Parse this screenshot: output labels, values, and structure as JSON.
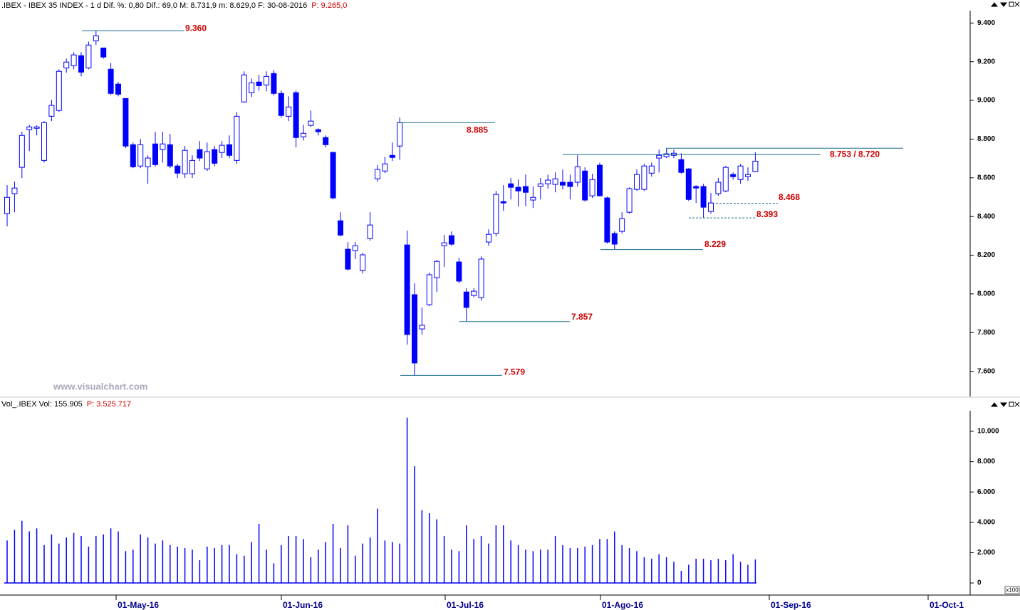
{
  "chart_data": [
    {
      "type": "candlestick",
      "title": ".IBEX - IBEX 35 INDEX - 1 d  Dif. %: 0,80  Dif.: 69,0  M: 8.731,9  m: 8.629,0  F: 30-08-2016",
      "subtitle": "P: 9.265,0",
      "watermark": "www.visualchart.com",
      "x_labels": [
        "01-May-16",
        "01-Jun-16",
        "01-Jul-16",
        "01-Ago-16",
        "01-Sep-16",
        "01-Oct-1"
      ],
      "up_color": "#ffffff",
      "down_color": "#0000ff",
      "line_color": "#0000ff",
      "annotation_color": "#1a6e8e",
      "annotation_label_color": "#cc0000",
      "ylim": [
        7470,
        9460
      ],
      "yticks": [
        {
          "value": 7600,
          "label": "7.600"
        },
        {
          "value": 7800,
          "label": "7.800"
        },
        {
          "value": 8000,
          "label": "8.000"
        },
        {
          "value": 8200,
          "label": "8.200"
        },
        {
          "value": 8400,
          "label": "8.400"
        },
        {
          "value": 8600,
          "label": "8.600"
        },
        {
          "value": 8800,
          "label": "8.800"
        },
        {
          "value": 9000,
          "label": "9.000"
        },
        {
          "value": 9200,
          "label": "9.200"
        },
        {
          "value": 9400,
          "label": "9.400"
        }
      ],
      "open": [
        8415,
        8518,
        8654,
        8849,
        8856,
        8690,
        8918,
        8948,
        9168,
        9179,
        9231,
        9168,
        9308,
        9271,
        9161,
        9084,
        9010,
        8771,
        8661,
        8657,
        8775,
        8746,
        8771,
        8661,
        8621,
        8621,
        8746,
        8646,
        8746,
        8731,
        8771,
        8690,
        8992,
        9040,
        9095,
        9080,
        9139,
        9036,
        8918,
        9040,
        8812,
        8871,
        8849,
        8808,
        8731,
        8378,
        8231,
        8224,
        8121,
        8286,
        8595,
        8635,
        8716,
        8764,
        8253,
        7996,
        7819,
        7944,
        8084,
        8249,
        8301,
        8165,
        8010,
        7992,
        7981,
        8268,
        8312,
        8477,
        8569,
        8551,
        8555,
        8485,
        8555,
        8569,
        8566,
        8577,
        8577,
        8577,
        8635,
        8507,
        8665,
        8496,
        8312,
        8323,
        8422,
        8540,
        8540,
        8624,
        8702,
        8709,
        8716,
        8694,
        8646,
        8555,
        8555,
        8426,
        8518,
        8532,
        8617,
        8591,
        8606,
        8632
      ],
      "high": [
        8562,
        8580,
        8838,
        8874,
        8871,
        8893,
        9003,
        9161,
        9216,
        9249,
        9249,
        9304,
        9360,
        9271,
        9194,
        9095,
        9010,
        8782,
        8801,
        8716,
        8838,
        8838,
        8827,
        8672,
        8764,
        8716,
        8790,
        8782,
        8764,
        8790,
        8819,
        8940,
        9150,
        9113,
        9132,
        9150,
        9157,
        9051,
        9021,
        9051,
        8874,
        8948,
        8856,
        8819,
        8735,
        8422,
        8268,
        8268,
        8213,
        8422,
        8665,
        8709,
        8782,
        8911,
        8327,
        8055,
        7930,
        8110,
        8176,
        8305,
        8323,
        8187,
        8029,
        8029,
        8194,
        8334,
        8532,
        8562,
        8599,
        8591,
        8617,
        8555,
        8599,
        8617,
        8628,
        8643,
        8617,
        8716,
        8654,
        8621,
        8679,
        8503,
        8323,
        8422,
        8551,
        8643,
        8672,
        8679,
        8746,
        8753,
        8746,
        8727,
        8650,
        8562,
        8569,
        8521,
        8599,
        8661,
        8628,
        8672,
        8654,
        8731.9
      ],
      "low": [
        8349,
        8422,
        8599,
        8738,
        8819,
        8679,
        8893,
        8940,
        9143,
        9161,
        9124,
        9161,
        9286,
        9216,
        9029,
        9021,
        8753,
        8650,
        8650,
        8569,
        8657,
        8679,
        8650,
        8599,
        8599,
        8599,
        8687,
        8635,
        8661,
        8702,
        8702,
        8672,
        8988,
        9018,
        9051,
        9047,
        9025,
        8911,
        8893,
        8757,
        8793,
        8863,
        8819,
        8757,
        8488,
        8297,
        8121,
        8180,
        8106,
        8275,
        8580,
        8624,
        8687,
        8694,
        7738,
        7579,
        7790,
        7937,
        8010,
        8139,
        8249,
        8055,
        7857,
        7981,
        7966,
        8249,
        8297,
        8429,
        8488,
        8452,
        8452,
        8444,
        8488,
        8544,
        8525,
        8540,
        8488,
        8555,
        8477,
        8496,
        8503,
        8260,
        8229,
        8312,
        8415,
        8532,
        8532,
        8606,
        8628,
        8702,
        8702,
        8621,
        8481,
        8470,
        8393,
        8415,
        8507,
        8525,
        8591,
        8569,
        8584,
        8629
      ],
      "close": [
        8499,
        8547,
        8819,
        8863,
        8863,
        8885,
        8974,
        9150,
        9198,
        9235,
        9146,
        9286,
        9334,
        9224,
        9036,
        9032,
        8764,
        8657,
        8771,
        8702,
        8668,
        8775,
        8661,
        8624,
        8742,
        8690,
        8702,
        8735,
        8675,
        8768,
        8716,
        8918,
        9132,
        9091,
        9076,
        9124,
        9036,
        8922,
        8966,
        8808,
        8830,
        8893,
        8838,
        8771,
        8496,
        8304,
        8128,
        8249,
        8202,
        8356,
        8643,
        8672,
        8705,
        8885,
        7790,
        7643,
        7838,
        8099,
        8168,
        8264,
        8257,
        8066,
        7930,
        8014,
        8180,
        8308,
        8514,
        8470,
        8551,
        8532,
        8525,
        8499,
        8569,
        8588,
        8595,
        8562,
        8555,
        8657,
        8485,
        8591,
        8507,
        8268,
        8257,
        8389,
        8544,
        8617,
        8661,
        8661,
        8716,
        8724,
        8727,
        8628,
        8488,
        8547,
        8448,
        8470,
        8577,
        8654,
        8606,
        8661,
        8617,
        8686
      ],
      "annotations": [
        {
          "values": [
            9360
          ],
          "label": "9.360"
        },
        {
          "values": [
            8885
          ],
          "label": "8.885"
        },
        {
          "values": [
            8753,
            8720
          ],
          "label": "8.753 / 8.720"
        },
        {
          "values": [
            8468
          ],
          "label": "8.468",
          "style": "dashed"
        },
        {
          "values": [
            8393
          ],
          "label": "8.393",
          "style": "dashed"
        },
        {
          "values": [
            8229
          ],
          "label": "8.229"
        },
        {
          "values": [
            7857
          ],
          "label": "7.857"
        },
        {
          "values": [
            7579
          ],
          "label": "7.579"
        }
      ]
    },
    {
      "type": "bar",
      "title": "Vol_.IBEX Vol: 155.905",
      "subtitle": "P: 3.525.717",
      "scale_note": "x100",
      "color": "#0000ff",
      "ylim": [
        -750,
        11360
      ],
      "yticks": [
        0,
        {
          "value": 2000,
          "label": "2.000"
        },
        {
          "value": 4000,
          "label": "4.000"
        },
        {
          "value": 6000,
          "label": "6.000"
        },
        {
          "value": 8000,
          "label": "8.000"
        },
        {
          "value": 10000,
          "label": "10.000"
        }
      ],
      "values": [
        2800,
        3500,
        4100,
        3400,
        3600,
        2500,
        3200,
        2600,
        3000,
        3300,
        3100,
        2400,
        3100,
        3200,
        3600,
        3400,
        2100,
        2200,
        3200,
        3000,
        2600,
        2800,
        2500,
        2400,
        2300,
        2200,
        1500,
        2400,
        2300,
        2500,
        2500,
        1900,
        1800,
        2700,
        3900,
        2200,
        1300,
        2500,
        3100,
        3100,
        2900,
        1700,
        2200,
        2700,
        3900,
        2300,
        3800,
        1800,
        2600,
        3000,
        4900,
        2800,
        2700,
        2600,
        10900,
        7700,
        4800,
        4600,
        4200,
        3100,
        2200,
        2100,
        3800,
        2900,
        3100,
        2600,
        3800,
        3800,
        2800,
        2500,
        2200,
        2100,
        2200,
        2200,
        3100,
        2500,
        2300,
        2300,
        2400,
        2500,
        2900,
        2900,
        3400,
        2500,
        2300,
        2100,
        1700,
        1600,
        1900,
        1700,
        1400,
        800,
        1200,
        1600,
        1600,
        1500,
        1600,
        1500,
        1900,
        1400,
        1200,
        1550
      ]
    }
  ]
}
